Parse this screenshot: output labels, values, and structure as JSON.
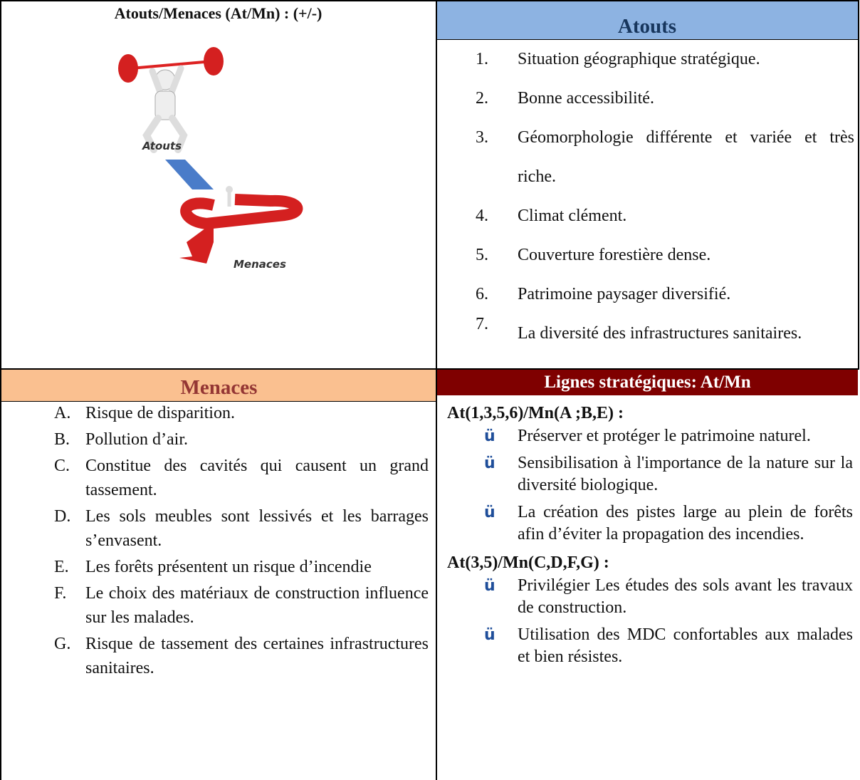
{
  "table": {
    "top_left": {
      "title": "Atouts/Menaces (At/Mn) : (+/-)",
      "image_labels": [
        "Atouts",
        "Menaces"
      ]
    },
    "atouts": {
      "header": "Atouts",
      "items": [
        {
          "marker": "1.",
          "text": "Situation géographique stratégique."
        },
        {
          "marker": "2.",
          "text": "Bonne accessibilité."
        },
        {
          "marker": "3.",
          "text": "Géomorphologie différente et variée et très riche."
        },
        {
          "marker": "4.",
          "text": "Climat clément."
        },
        {
          "marker": "5.",
          "text": "Couverture forestière dense."
        },
        {
          "marker": "6.",
          "text": "Patrimoine paysager diversifié."
        },
        {
          "marker": "7.",
          "text": "La diversité des infrastructures sanitaires."
        }
      ]
    },
    "menaces": {
      "header": "Menaces",
      "items": [
        {
          "marker": "A.",
          "text": "Risque de disparition."
        },
        {
          "marker": "B.",
          "text": "Pollution d’air."
        },
        {
          "marker": "C.",
          "text": "Constitue des cavités qui causent un grand tassement."
        },
        {
          "marker": "D.",
          "text": "Les sols meubles sont lessivés et les barrages s’envasent."
        },
        {
          "marker": "E.",
          "text": "Les forêts présentent un risque d’incendie"
        },
        {
          "marker": "F.",
          "text": "Le choix des matériaux de construction influence sur les malades."
        },
        {
          "marker": "G.",
          "text": "Risque de tassement des certaines infrastructures sanitaires."
        }
      ]
    },
    "lignes": {
      "header": "Lignes stratégiques: At/Mn",
      "groups": [
        {
          "heading": "At(1,3,5,6)/Mn(A ;B,E) :",
          "items": [
            {
              "marker": "ü",
              "text": "Préserver et protéger le patrimoine naturel."
            },
            {
              "marker": "ü",
              "text": "Sensibilisation à l'importance de la nature sur la diversité biologique."
            },
            {
              "marker": "ü",
              "text": "La création des pistes large au plein de forêts afin d’éviter la propagation des incendies."
            }
          ]
        },
        {
          "heading": "At(3,5)/Mn(C,D,F,G) :",
          "items": [
            {
              "marker": "ü",
              "text": "Privilégier Les études des sols avant les travaux de construction."
            },
            {
              "marker": "ü",
              "text": "Utilisation des MDC confortables aux malades et bien résistes."
            }
          ]
        }
      ]
    }
  }
}
